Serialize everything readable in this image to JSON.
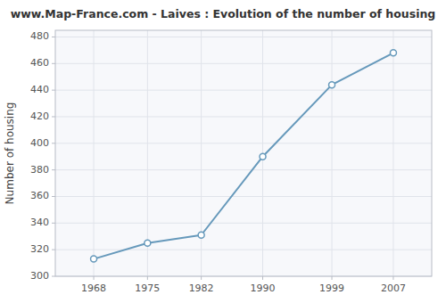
{
  "chart_data": {
    "type": "line",
    "title": "www.Map-France.com - Laives : Evolution of the number of housing",
    "ylabel": "Number of housing",
    "x": [
      1968,
      1975,
      1982,
      1990,
      1999,
      2007
    ],
    "values": [
      313,
      325,
      331,
      390,
      444,
      468
    ],
    "xlim": [
      1963,
      2012
    ],
    "ylim": [
      300,
      485
    ],
    "xticks": [
      1968,
      1975,
      1982,
      1990,
      1999,
      2007
    ],
    "yticks": [
      300,
      320,
      340,
      360,
      380,
      400,
      420,
      440,
      460,
      480
    ],
    "color": "#6699bb",
    "marker": "circle",
    "grid": true
  }
}
